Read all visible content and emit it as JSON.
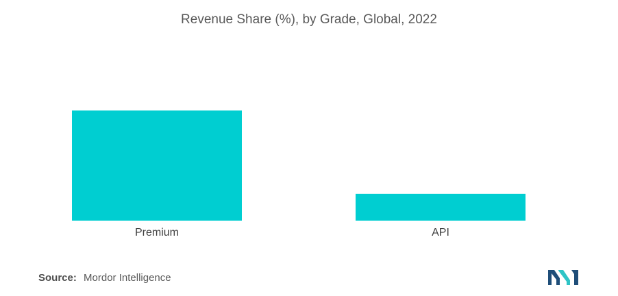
{
  "chart_data": {
    "type": "bar",
    "title": "Revenue Share (%), by Grade, Global, 2022",
    "categories": [
      "Premium",
      "API"
    ],
    "values": [
      78,
      19
    ],
    "ylim": [
      0,
      100
    ],
    "xlabel": "",
    "ylabel": "",
    "grid": false,
    "legend": "none",
    "bar_color": "#00CED1"
  },
  "source": {
    "label": "Source:",
    "text": "Mordor Intelligence"
  },
  "colors": {
    "logo_dark": "#1F4E79",
    "logo_light": "#2EC4C6"
  }
}
